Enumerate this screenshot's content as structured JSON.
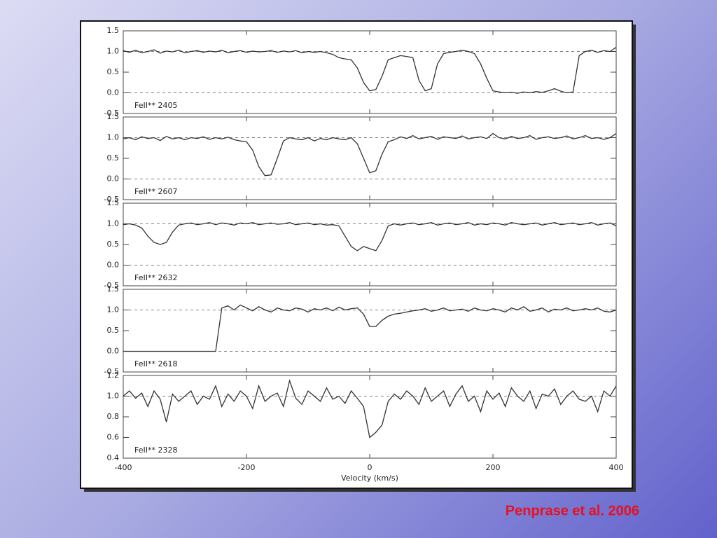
{
  "caption": "Penprase et al. 2006",
  "chart_data": [
    {
      "type": "line",
      "label": "FeII** 2405",
      "color": "#333333",
      "xlim": [
        -400,
        400
      ],
      "xticks": [
        -400,
        -200,
        0,
        200,
        400
      ],
      "ylim": [
        -0.5,
        1.5
      ],
      "yticks": [
        {
          "value": -0.5,
          "label": "-0.5"
        },
        {
          "value": 0,
          "label": "0.0"
        },
        {
          "value": 0.5,
          "label": "0.5"
        },
        {
          "value": 1,
          "label": "1.0"
        },
        {
          "value": 1.5,
          "label": "1.5"
        }
      ],
      "hlines": [
        0,
        1
      ],
      "x": [
        -400,
        -390,
        -380,
        -370,
        -360,
        -350,
        -340,
        -330,
        -320,
        -310,
        -300,
        -290,
        -280,
        -270,
        -260,
        -250,
        -240,
        -230,
        -220,
        -210,
        -200,
        -190,
        -180,
        -170,
        -160,
        -150,
        -140,
        -130,
        -120,
        -110,
        -100,
        -90,
        -80,
        -70,
        -60,
        -50,
        -40,
        -30,
        -20,
        -10,
        0,
        10,
        20,
        30,
        40,
        50,
        60,
        70,
        80,
        90,
        100,
        110,
        120,
        130,
        140,
        150,
        160,
        170,
        180,
        190,
        200,
        210,
        220,
        230,
        240,
        250,
        260,
        270,
        280,
        290,
        300,
        310,
        320,
        330,
        340,
        350,
        360,
        370,
        380,
        390,
        400
      ],
      "values": [
        1.02,
        0.98,
        1.03,
        0.97,
        1.0,
        1.04,
        0.96,
        1.01,
        0.99,
        1.03,
        0.97,
        1.0,
        1.02,
        0.98,
        1.01,
        0.99,
        1.03,
        0.97,
        1.0,
        1.02,
        0.98,
        1.01,
        0.99,
        1.0,
        1.02,
        0.98,
        1.01,
        0.99,
        1.02,
        0.97,
        1.0,
        0.98,
        1.0,
        0.97,
        0.93,
        0.85,
        0.82,
        0.8,
        0.6,
        0.25,
        0.05,
        0.08,
        0.4,
        0.8,
        0.85,
        0.9,
        0.88,
        0.85,
        0.3,
        0.05,
        0.1,
        0.7,
        0.95,
        0.98,
        1.0,
        1.03,
        1.0,
        0.95,
        0.7,
        0.35,
        0.05,
        0.02,
        0.0,
        0.01,
        -0.01,
        0.02,
        0.0,
        0.03,
        0.01,
        0.05,
        0.1,
        0.04,
        0.0,
        0.02,
        0.9,
        1.0,
        1.03,
        0.98,
        1.02,
        1.0,
        1.1
      ]
    },
    {
      "type": "line",
      "label": "FeII** 2607",
      "color": "#333333",
      "xlim": [
        -400,
        400
      ],
      "xticks": [
        -400,
        -200,
        0,
        200,
        400
      ],
      "ylim": [
        -0.5,
        1.5
      ],
      "yticks": [
        {
          "value": -0.5,
          "label": "-0.5"
        },
        {
          "value": 0,
          "label": "0.0"
        },
        {
          "value": 0.5,
          "label": "0.5"
        },
        {
          "value": 1,
          "label": "1.0"
        },
        {
          "value": 1.5,
          "label": "1.5"
        }
      ],
      "hlines": [
        0,
        1
      ],
      "x": [
        -400,
        -390,
        -380,
        -370,
        -360,
        -350,
        -340,
        -330,
        -320,
        -310,
        -300,
        -290,
        -280,
        -270,
        -260,
        -250,
        -240,
        -230,
        -220,
        -210,
        -200,
        -190,
        -180,
        -170,
        -160,
        -150,
        -140,
        -130,
        -120,
        -110,
        -100,
        -90,
        -80,
        -70,
        -60,
        -50,
        -40,
        -30,
        -20,
        -10,
        0,
        10,
        20,
        30,
        40,
        50,
        60,
        70,
        80,
        90,
        100,
        110,
        120,
        130,
        140,
        150,
        160,
        170,
        180,
        190,
        200,
        210,
        220,
        230,
        240,
        250,
        260,
        270,
        280,
        290,
        300,
        310,
        320,
        330,
        340,
        350,
        360,
        370,
        380,
        390,
        400
      ],
      "values": [
        0.97,
        1.0,
        0.95,
        1.02,
        0.98,
        1.0,
        0.93,
        1.03,
        0.97,
        1.0,
        0.95,
        1.0,
        0.98,
        1.02,
        0.96,
        1.0,
        0.97,
        1.01,
        0.95,
        0.92,
        0.9,
        0.7,
        0.3,
        0.08,
        0.1,
        0.5,
        0.92,
        1.0,
        0.97,
        0.95,
        1.0,
        0.92,
        0.98,
        0.95,
        1.0,
        0.97,
        0.95,
        1.0,
        0.85,
        0.5,
        0.15,
        0.2,
        0.6,
        0.9,
        0.95,
        1.02,
        0.98,
        1.05,
        0.97,
        1.0,
        1.03,
        0.96,
        1.02,
        1.0,
        0.98,
        1.04,
        0.97,
        1.0,
        1.02,
        0.98,
        1.1,
        1.0,
        0.97,
        1.03,
        0.98,
        1.0,
        1.05,
        0.96,
        1.0,
        1.02,
        0.98,
        1.0,
        1.04,
        0.97,
        1.0,
        1.05,
        0.98,
        1.0,
        0.96,
        1.0,
        1.1
      ]
    },
    {
      "type": "line",
      "label": "FeII** 2632",
      "color": "#333333",
      "xlim": [
        -400,
        400
      ],
      "xticks": [
        -400,
        -200,
        0,
        200,
        400
      ],
      "ylim": [
        -0.5,
        1.5
      ],
      "yticks": [
        {
          "value": -0.5,
          "label": "-0.5"
        },
        {
          "value": 0,
          "label": "0.0"
        },
        {
          "value": 0.5,
          "label": "0.5"
        },
        {
          "value": 1,
          "label": "1.0"
        },
        {
          "value": 1.5,
          "label": "1.5"
        }
      ],
      "hlines": [
        0,
        1
      ],
      "x": [
        -400,
        -390,
        -380,
        -370,
        -360,
        -350,
        -340,
        -330,
        -320,
        -310,
        -300,
        -290,
        -280,
        -270,
        -260,
        -250,
        -240,
        -230,
        -220,
        -210,
        -200,
        -190,
        -180,
        -170,
        -160,
        -150,
        -140,
        -130,
        -120,
        -110,
        -100,
        -90,
        -80,
        -70,
        -60,
        -50,
        -40,
        -30,
        -20,
        -10,
        0,
        10,
        20,
        30,
        40,
        50,
        60,
        70,
        80,
        90,
        100,
        110,
        120,
        130,
        140,
        150,
        160,
        170,
        180,
        190,
        200,
        210,
        220,
        230,
        240,
        250,
        260,
        270,
        280,
        290,
        300,
        310,
        320,
        330,
        340,
        350,
        360,
        370,
        380,
        390,
        400
      ],
      "values": [
        0.98,
        1.0,
        0.97,
        0.9,
        0.7,
        0.55,
        0.5,
        0.55,
        0.8,
        0.97,
        1.0,
        1.02,
        0.98,
        1.0,
        1.03,
        0.98,
        1.02,
        1.0,
        0.97,
        1.02,
        1.0,
        1.03,
        0.98,
        1.0,
        1.02,
        0.99,
        1.0,
        1.03,
        0.98,
        1.0,
        1.02,
        0.98,
        1.0,
        0.97,
        0.98,
        0.95,
        0.7,
        0.45,
        0.35,
        0.45,
        0.4,
        0.35,
        0.6,
        0.95,
        1.0,
        0.97,
        1.0,
        1.02,
        0.98,
        1.0,
        1.03,
        0.97,
        1.0,
        1.02,
        0.98,
        1.0,
        1.03,
        0.97,
        1.0,
        0.98,
        1.02,
        1.0,
        0.97,
        1.03,
        1.0,
        0.98,
        1.0,
        1.02,
        0.97,
        1.0,
        1.03,
        0.98,
        1.0,
        1.02,
        0.98,
        1.0,
        1.03,
        0.97,
        1.0,
        1.02,
        0.95
      ]
    },
    {
      "type": "line",
      "label": "FeII** 2618",
      "color": "#333333",
      "xlim": [
        -400,
        400
      ],
      "xticks": [
        -400,
        -200,
        0,
        200,
        400
      ],
      "ylim": [
        -0.5,
        1.5
      ],
      "yticks": [
        {
          "value": -0.5,
          "label": "-0.5"
        },
        {
          "value": 0,
          "label": "0.0"
        },
        {
          "value": 0.5,
          "label": "0.5"
        },
        {
          "value": 1,
          "label": "1.0"
        },
        {
          "value": 1.5,
          "label": "1.5"
        }
      ],
      "hlines": [
        0,
        1
      ],
      "x": [
        -400,
        -390,
        -380,
        -370,
        -360,
        -350,
        -340,
        -330,
        -320,
        -310,
        -300,
        -290,
        -280,
        -270,
        -260,
        -250,
        -240,
        -230,
        -220,
        -210,
        -200,
        -190,
        -180,
        -170,
        -160,
        -150,
        -140,
        -130,
        -120,
        -110,
        -100,
        -90,
        -80,
        -70,
        -60,
        -50,
        -40,
        -30,
        -20,
        -10,
        0,
        10,
        20,
        30,
        40,
        50,
        60,
        70,
        80,
        90,
        100,
        110,
        120,
        130,
        140,
        150,
        160,
        170,
        180,
        190,
        200,
        210,
        220,
        230,
        240,
        250,
        260,
        270,
        280,
        290,
        300,
        310,
        320,
        330,
        340,
        350,
        360,
        370,
        380,
        390,
        400
      ],
      "values": [
        0,
        0,
        0,
        0,
        0,
        0,
        0,
        0,
        0,
        0,
        0,
        0,
        0,
        0,
        0,
        0,
        1.05,
        1.1,
        1.0,
        1.12,
        1.05,
        0.98,
        1.08,
        1.0,
        0.95,
        1.05,
        1.0,
        0.98,
        1.05,
        1.02,
        0.95,
        1.03,
        1.0,
        1.05,
        0.98,
        1.07,
        1.0,
        1.03,
        1.05,
        0.9,
        0.6,
        0.6,
        0.75,
        0.85,
        0.9,
        0.92,
        0.95,
        0.98,
        1.0,
        1.03,
        0.97,
        1.0,
        1.05,
        0.98,
        1.0,
        1.02,
        0.97,
        1.05,
        1.0,
        0.98,
        1.03,
        1.0,
        0.95,
        1.05,
        1.0,
        1.08,
        0.97,
        1.0,
        1.05,
        0.95,
        1.02,
        1.0,
        1.05,
        0.98,
        1.0,
        1.03,
        1.0,
        1.05,
        0.97,
        0.95,
        1.0
      ]
    },
    {
      "type": "line",
      "label": "FeII** 2328",
      "color": "#333333",
      "xlim": [
        -400,
        400
      ],
      "xticks": [
        -400,
        -200,
        0,
        200,
        400
      ],
      "xlabel": "Velocity (km/s)",
      "ylim": [
        0.4,
        1.2
      ],
      "yticks": [
        0.4,
        0.6,
        0.8,
        {
          "value": 1,
          "label": "1.0"
        },
        1.2
      ],
      "hlines": [
        1
      ],
      "x": [
        -400,
        -390,
        -380,
        -370,
        -360,
        -350,
        -340,
        -330,
        -320,
        -310,
        -300,
        -290,
        -280,
        -270,
        -260,
        -250,
        -240,
        -230,
        -220,
        -210,
        -200,
        -190,
        -180,
        -170,
        -160,
        -150,
        -140,
        -130,
        -120,
        -110,
        -100,
        -90,
        -80,
        -70,
        -60,
        -50,
        -40,
        -30,
        -20,
        -10,
        0,
        10,
        20,
        30,
        40,
        50,
        60,
        70,
        80,
        90,
        100,
        110,
        120,
        130,
        140,
        150,
        160,
        170,
        180,
        190,
        200,
        210,
        220,
        230,
        240,
        250,
        260,
        270,
        280,
        290,
        300,
        310,
        320,
        330,
        340,
        350,
        360,
        370,
        380,
        390,
        400
      ],
      "values": [
        1.0,
        1.05,
        0.98,
        1.03,
        0.9,
        1.05,
        0.97,
        0.75,
        1.02,
        0.95,
        1.0,
        1.05,
        0.92,
        1.0,
        0.97,
        1.1,
        0.9,
        1.02,
        0.95,
        1.05,
        1.0,
        0.88,
        1.1,
        0.95,
        1.0,
        1.03,
        0.9,
        1.15,
        0.98,
        0.92,
        1.05,
        1.0,
        0.95,
        1.08,
        0.97,
        1.0,
        0.93,
        1.05,
        0.98,
        0.9,
        0.6,
        0.65,
        0.72,
        0.95,
        1.02,
        0.97,
        1.05,
        1.0,
        0.92,
        1.08,
        0.95,
        1.0,
        1.05,
        0.9,
        1.02,
        1.1,
        0.95,
        1.0,
        0.85,
        1.05,
        0.97,
        1.03,
        0.9,
        1.08,
        1.0,
        0.95,
        1.05,
        0.88,
        1.02,
        1.0,
        1.07,
        0.92,
        1.0,
        1.05,
        0.97,
        0.95,
        1.0,
        0.85,
        1.05,
        1.0,
        1.1
      ]
    }
  ]
}
